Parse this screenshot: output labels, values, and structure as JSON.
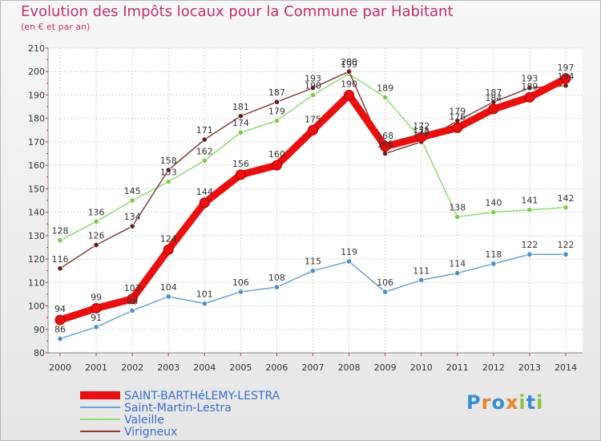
{
  "header": {
    "title": "Evolution des Impôts locaux pour la Commune par Habitant",
    "subtitle": "(en € et par an)"
  },
  "logo": {
    "text": "Proxiti",
    "colors": [
      "#3a8fd0",
      "#e8842c",
      "#3a8fd0",
      "#e8842c",
      "#8bc34a",
      "#3a8fd0",
      "#8bc34a"
    ]
  },
  "chart_data": {
    "type": "line",
    "title": "Evolution des Impôts locaux pour la Commune par Habitant",
    "subtitle": "(en € et par an)",
    "xlabel": "",
    "ylabel": "",
    "ylim": [
      80,
      210
    ],
    "yticks": [
      80,
      90,
      100,
      110,
      120,
      130,
      140,
      150,
      160,
      170,
      180,
      190,
      200,
      210
    ],
    "grid": true,
    "legend_position": "bottom-left",
    "categories": [
      "2000",
      "2001",
      "2002",
      "2003",
      "2004",
      "2005",
      "2006",
      "2007",
      "2008",
      "2009",
      "2010",
      "2011",
      "2012",
      "2013",
      "2014"
    ],
    "series": [
      {
        "name": "SAINT-BARTHéLEMY-LESTRA",
        "color": "#e8100f",
        "marker": "#e8100f",
        "width": 9,
        "values": [
          94,
          99,
          103,
          124,
          144,
          156,
          160,
          175,
          190,
          168,
          172,
          176,
          184,
          189,
          197
        ]
      },
      {
        "name": "Saint-Martin-Lestra",
        "color": "#6aa2d2",
        "marker": "#4a8fc6",
        "width": 1.5,
        "values": [
          86,
          91,
          98,
          104,
          101,
          106,
          108,
          115,
          119,
          106,
          111,
          114,
          118,
          122,
          122
        ]
      },
      {
        "name": "Valeille",
        "color": "#8fdb70",
        "marker": "#79cc46",
        "width": 1.5,
        "values": [
          128,
          136,
          145,
          153,
          162,
          174,
          179,
          190,
          199,
          189,
          171,
          138,
          140,
          141,
          142
        ]
      },
      {
        "name": "Virigneux",
        "color": "#8a3a3a",
        "marker": "#6b1a1a",
        "width": 1.5,
        "values": [
          116,
          126,
          134,
          158,
          171,
          181,
          187,
          193,
          200,
          165,
          170,
          179,
          187,
          193,
          194
        ]
      }
    ],
    "point_labels": {
      "SAINT-BARTHéLEMY-LESTRA": [
        "94",
        "99",
        "103",
        "124",
        "144",
        "156",
        "160",
        "175",
        "190",
        "168",
        "172",
        "176",
        "184",
        "189",
        "197"
      ],
      "Saint-Martin-Lestra": [
        "86",
        "91",
        "98",
        "104",
        "101",
        "106",
        "108",
        "115",
        "119",
        "106",
        "111",
        "114",
        "118",
        "122",
        "122"
      ],
      "Valeille": [
        "128",
        "136",
        "145",
        "153",
        "162",
        "174",
        "179",
        "190",
        "199",
        "189",
        "171",
        "138",
        "140",
        "141",
        "142"
      ],
      "Virigneux": [
        "116",
        "126",
        "134",
        "158",
        "171",
        "181",
        "187",
        "193",
        "200",
        "165",
        "170",
        "179",
        "187",
        "193",
        "194"
      ]
    }
  }
}
